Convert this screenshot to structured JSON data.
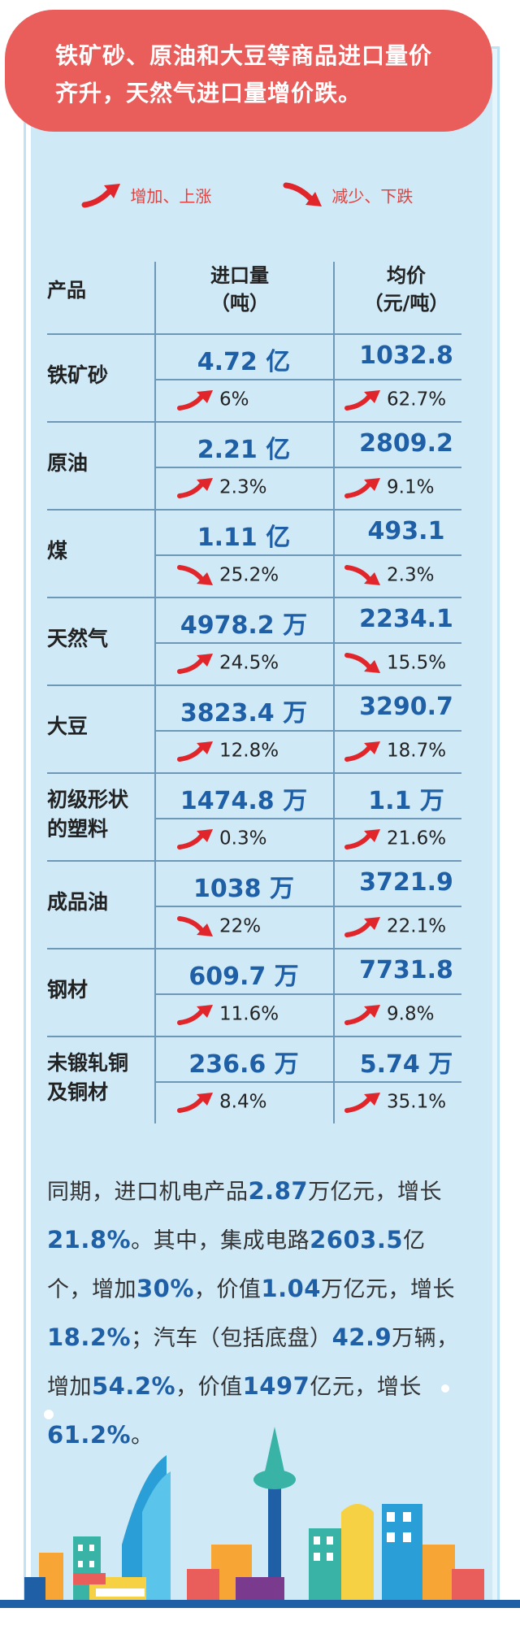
{
  "banner": {
    "line1": "铁矿砂、原油和大豆等商品进口量价",
    "line2": "齐升，天然气进口量增价跌。"
  },
  "legend": {
    "up_label": "增加、上涨",
    "down_label": "减少、下跌"
  },
  "table": {
    "headers": {
      "product": "产品",
      "volume_line1": "进口量",
      "volume_line2": "（吨）",
      "price_line1": "均价",
      "price_line2": "（元/吨）"
    },
    "rows": [
      {
        "name1": "铁矿砂",
        "name2": "",
        "volume": "4.72 亿",
        "volume_dir": "up",
        "volume_chg": "6%",
        "price": "1032.8",
        "price_dir": "up",
        "price_chg": "62.7%"
      },
      {
        "name1": "原油",
        "name2": "",
        "volume": "2.21 亿",
        "volume_dir": "up",
        "volume_chg": "2.3%",
        "price": "2809.2",
        "price_dir": "up",
        "price_chg": "9.1%"
      },
      {
        "name1": "煤",
        "name2": "",
        "volume": "1.11 亿",
        "volume_dir": "down",
        "volume_chg": "25.2%",
        "price": "493.1",
        "price_dir": "down",
        "price_chg": "2.3%"
      },
      {
        "name1": "天然气",
        "name2": "",
        "volume": "4978.2 万",
        "volume_dir": "up",
        "volume_chg": "24.5%",
        "price": "2234.1",
        "price_dir": "down",
        "price_chg": "15.5%"
      },
      {
        "name1": "大豆",
        "name2": "",
        "volume": "3823.4 万",
        "volume_dir": "up",
        "volume_chg": "12.8%",
        "price": "3290.7",
        "price_dir": "up",
        "price_chg": "18.7%"
      },
      {
        "name1": "初级形状",
        "name2": "的塑料",
        "volume": "1474.8 万",
        "volume_dir": "up",
        "volume_chg": "0.3%",
        "price": "1.1 万",
        "price_dir": "up",
        "price_chg": "21.6%"
      },
      {
        "name1": "成品油",
        "name2": "",
        "volume": "1038 万",
        "volume_dir": "down",
        "volume_chg": "22%",
        "price": "3721.9",
        "price_dir": "up",
        "price_chg": "22.1%"
      },
      {
        "name1": "钢材",
        "name2": "",
        "volume": "609.7 万",
        "volume_dir": "up",
        "volume_chg": "11.6%",
        "price": "7731.8",
        "price_dir": "up",
        "price_chg": "9.8%"
      },
      {
        "name1": "未锻轧铜",
        "name2": "及铜材",
        "volume": "236.6 万",
        "volume_dir": "up",
        "volume_chg": "8.4%",
        "price": "5.74 万",
        "price_dir": "up",
        "price_chg": "35.1%"
      }
    ]
  },
  "summary": {
    "s1": "同期，进口机电产品",
    "v1": "2.87",
    "s2": "万亿元，增长",
    "v2": "21.8%",
    "s3": "。其中，集成电路",
    "v3": "2603.5",
    "s4": "亿个，增加",
    "v4": "30%",
    "s5": "，价值",
    "v5": "1.04",
    "s6": "万亿元，增长",
    "v6": "18.2%",
    "s7": "；汽车（包括底盘）",
    "v7": "42.9",
    "s8": "万辆，增加",
    "v8": "54.2%",
    "s9": "，价值",
    "v9": "1497",
    "s10": "亿元，增长",
    "v10": "61.2%",
    "s11": "。"
  },
  "colors": {
    "banner": "#e95d5b",
    "panel": "#cfe9f7",
    "value_blue": "#1f5fa6",
    "arrow_red": "#e0262b"
  }
}
